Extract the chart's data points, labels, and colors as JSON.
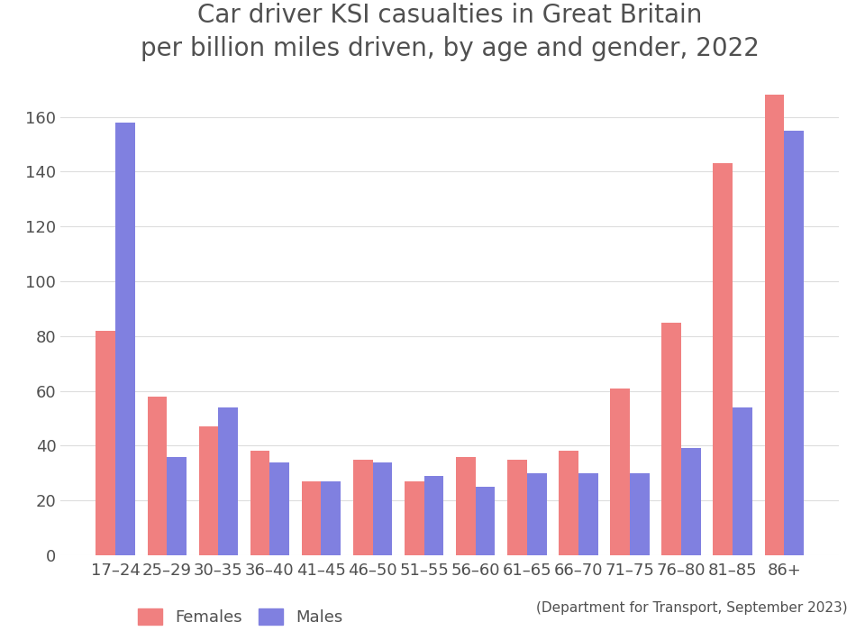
{
  "title": "Car driver KSI casualties in Great Britain\nper billion miles driven, by age and gender, 2022",
  "categories": [
    "17–24",
    "25–29",
    "30–35",
    "36–40",
    "41–45",
    "46–50",
    "51–55",
    "56–60",
    "61–65",
    "66–70",
    "71–75",
    "76–80",
    "81–85",
    "86+"
  ],
  "females": [
    82,
    58,
    47,
    38,
    27,
    35,
    27,
    36,
    35,
    38,
    61,
    85,
    143,
    168
  ],
  "males": [
    158,
    36,
    54,
    34,
    27,
    34,
    29,
    25,
    30,
    30,
    30,
    39,
    54,
    155
  ],
  "female_color": "#F08080",
  "male_color": "#8080E0",
  "ylim": [
    0,
    175
  ],
  "yticks": [
    0,
    20,
    40,
    60,
    80,
    100,
    120,
    140,
    160
  ],
  "source_text": "(Department for Transport, September 2023)",
  "title_fontsize": 20,
  "tick_fontsize": 13,
  "legend_fontsize": 13,
  "source_fontsize": 11,
  "bar_width": 0.38,
  "background_color": "#ffffff",
  "grid_color": "#dddddd",
  "text_color": "#505050"
}
